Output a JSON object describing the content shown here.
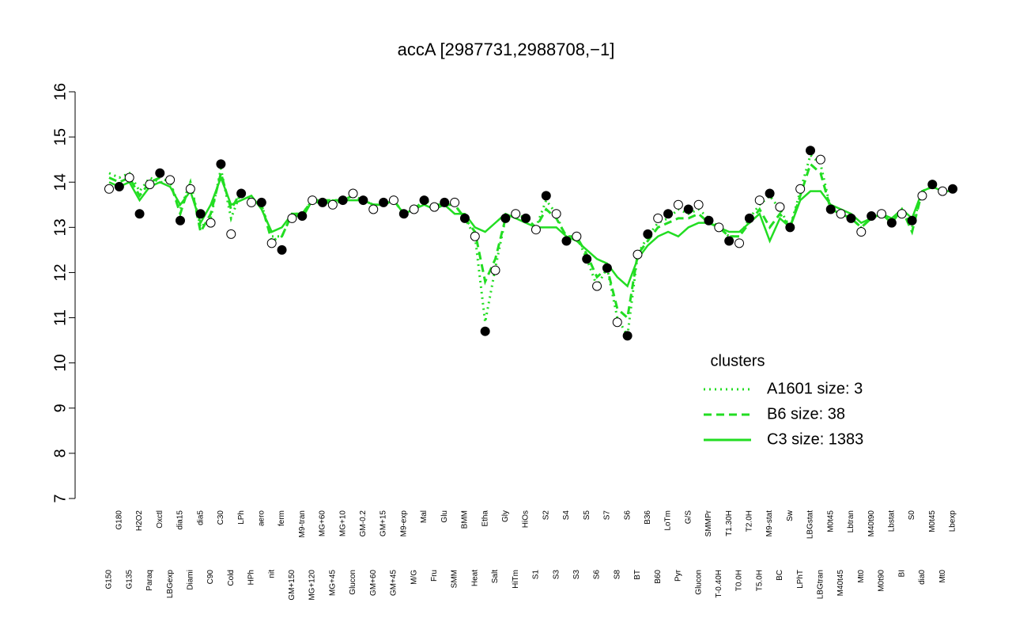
{
  "chart_data": {
    "type": "line",
    "title": "accA [2987731,2988708,−1]",
    "categories": [
      "G150",
      "G180",
      "G135",
      "H2O2",
      "Paraq",
      "Oxctl",
      "LBGexp",
      "dia15",
      "Diami",
      "dia5",
      "C90",
      "C30",
      "Cold",
      "LPh",
      "HPh",
      "aero",
      "nit",
      "ferm",
      "GM+150",
      "M9-tran",
      "MG+120",
      "MG+60",
      "MG+45",
      "MG+10",
      "Glucon",
      "GM-0.2",
      "GM+60",
      "GM+15",
      "GM+45",
      "M9-exp",
      "M/G",
      "Mal",
      "Fru",
      "Glu",
      "SMM",
      "BMM",
      "Heat",
      "Etha",
      "Salt",
      "Gly",
      "HiTm",
      "HiOs",
      "S1",
      "S2",
      "S3",
      "S4",
      "S3",
      "S5",
      "S6",
      "S7",
      "S8",
      "S6",
      "BT",
      "B36",
      "B60",
      "LoTm",
      "Pyr",
      "G/S",
      "Glucon",
      "SMMPr",
      "T-0.40H",
      "T1.30H",
      "T0.0H",
      "T2.0H",
      "T5.0H",
      "M9-stat",
      "BC",
      "Sw",
      "LPhT",
      "LBGstat",
      "LBGtran",
      "M0t45",
      "M40t45",
      "Lbtran",
      "Mt0",
      "M40t90",
      "M0t90",
      "Lbstat",
      "BI",
      "S0",
      "dia0",
      "M0t45",
      "Mt0",
      "Lbexp"
    ],
    "values": [
      13.85,
      13.9,
      14.1,
      13.3,
      13.95,
      14.2,
      14.05,
      13.15,
      13.85,
      13.3,
      13.1,
      14.4,
      12.85,
      13.75,
      13.55,
      13.55,
      12.65,
      12.5,
      13.2,
      13.25,
      13.6,
      13.55,
      13.5,
      13.6,
      13.75,
      13.6,
      13.4,
      13.55,
      13.6,
      13.3,
      13.4,
      13.6,
      13.45,
      13.55,
      13.55,
      13.2,
      12.8,
      10.7,
      12.05,
      13.2,
      13.3,
      13.2,
      12.95,
      13.7,
      13.3,
      12.7,
      12.8,
      12.3,
      11.7,
      12.1,
      10.9,
      10.6,
      12.4,
      12.85,
      13.2,
      13.3,
      13.5,
      13.4,
      13.5,
      13.15,
      13.0,
      12.7,
      12.65,
      13.2,
      13.6,
      13.75,
      13.45,
      13.0,
      13.85,
      14.7,
      14.5,
      13.4,
      13.3,
      13.2,
      12.9,
      13.25,
      13.3,
      13.1,
      13.3,
      13.15,
      13.7,
      13.95,
      13.8,
      13.85
    ],
    "series": [
      {
        "name": "A1601 size: 3",
        "color": "#22dd22",
        "style": "dotted",
        "values": [
          14.2,
          14.1,
          14.2,
          13.8,
          14.1,
          14.0,
          14.0,
          13.4,
          14.0,
          13.0,
          13.2,
          14.3,
          13.2,
          13.8,
          13.6,
          13.5,
          12.8,
          12.8,
          13.3,
          13.3,
          13.6,
          13.6,
          13.5,
          13.6,
          13.7,
          13.6,
          13.5,
          13.5,
          13.6,
          13.3,
          13.4,
          13.6,
          13.5,
          13.5,
          13.5,
          13.2,
          12.8,
          10.9,
          12.1,
          13.2,
          13.3,
          13.2,
          13.0,
          13.6,
          13.3,
          12.7,
          12.8,
          12.3,
          11.7,
          12.1,
          11.0,
          10.6,
          12.4,
          12.8,
          13.1,
          13.2,
          13.4,
          13.3,
          13.4,
          13.2,
          13.0,
          12.8,
          12.8,
          13.2,
          13.5,
          13.7,
          13.4,
          13.0,
          13.8,
          14.6,
          14.4,
          13.4,
          13.3,
          13.2,
          13.0,
          13.2,
          13.3,
          13.1,
          13.4,
          13.0,
          13.8,
          13.9,
          13.8,
          13.8
        ]
      },
      {
        "name": "B6 size: 38",
        "color": "#22dd22",
        "style": "dashed",
        "values": [
          14.1,
          14.0,
          14.1,
          13.7,
          14.0,
          14.1,
          14.0,
          13.3,
          14.0,
          12.9,
          13.3,
          14.2,
          13.4,
          13.8,
          13.6,
          13.5,
          12.7,
          12.8,
          13.3,
          13.3,
          13.6,
          13.6,
          13.6,
          13.6,
          13.7,
          13.6,
          13.5,
          13.5,
          13.6,
          13.3,
          13.4,
          13.6,
          13.5,
          13.5,
          13.5,
          13.2,
          12.9,
          11.8,
          12.3,
          13.2,
          13.3,
          13.2,
          13.0,
          13.4,
          13.2,
          12.8,
          12.8,
          12.4,
          11.9,
          12.1,
          11.2,
          11.0,
          12.4,
          12.7,
          13.0,
          13.1,
          13.2,
          13.2,
          13.3,
          13.1,
          13.0,
          12.8,
          12.8,
          13.1,
          13.4,
          13.0,
          13.3,
          13.0,
          13.7,
          14.4,
          14.2,
          13.4,
          13.3,
          13.2,
          13.0,
          13.2,
          13.3,
          13.1,
          13.4,
          12.9,
          13.8,
          13.9,
          13.8,
          13.8
        ]
      },
      {
        "name": "C3 size: 1383",
        "color": "#22dd22",
        "style": "solid",
        "values": [
          14.0,
          13.9,
          14.0,
          13.6,
          13.9,
          14.0,
          13.9,
          13.5,
          13.8,
          13.1,
          13.5,
          14.1,
          13.5,
          13.6,
          13.7,
          13.4,
          12.9,
          13.0,
          13.3,
          13.2,
          13.6,
          13.5,
          13.6,
          13.6,
          13.6,
          13.6,
          13.5,
          13.5,
          13.6,
          13.3,
          13.4,
          13.5,
          13.4,
          13.5,
          13.3,
          13.3,
          13.0,
          12.9,
          13.1,
          13.3,
          13.2,
          13.1,
          13.0,
          13.0,
          13.0,
          12.8,
          12.7,
          12.5,
          12.3,
          12.2,
          11.9,
          11.7,
          12.3,
          12.6,
          12.8,
          12.9,
          12.8,
          13.0,
          13.1,
          13.1,
          13.0,
          12.9,
          12.9,
          13.1,
          13.3,
          12.7,
          13.2,
          13.0,
          13.6,
          13.8,
          13.8,
          13.5,
          13.4,
          13.3,
          13.1,
          13.2,
          13.3,
          13.2,
          13.4,
          13.2,
          13.8,
          13.9,
          13.8,
          13.8
        ]
      }
    ],
    "ylim": [
      7,
      16
    ],
    "yticks": [
      7,
      8,
      9,
      10,
      11,
      12,
      13,
      14,
      15,
      16
    ],
    "legend_title": "clusters",
    "legend": "right"
  }
}
